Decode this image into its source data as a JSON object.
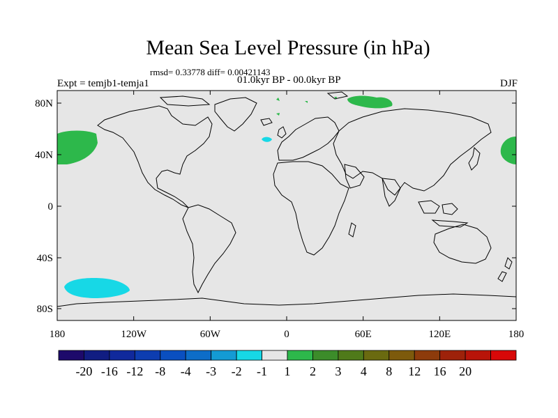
{
  "title": "Mean Sea Level Pressure (in hPa)",
  "subtitle": "rmsd= 0.33778 diff= 0.00421143",
  "left_label": "Expt = temjb1-temja1",
  "center_label": "01.0kyr BP - 00.0kyr BP",
  "right_label": "DJF",
  "colors": {
    "land_ocean_fill": "#e6e6e6",
    "green": "#2db84b",
    "cyan": "#17d8e6",
    "coast": "#000000"
  },
  "map": {
    "lat_ticks": [
      "80N",
      "40N",
      "0",
      "40S",
      "80S"
    ],
    "lon_ticks": [
      "180",
      "120W",
      "60W",
      "0",
      "60E",
      "120E",
      "180"
    ]
  },
  "colorbar": {
    "colors": [
      "#1d0a6b",
      "#111d82",
      "#10299c",
      "#0d3db0",
      "#0a4fc0",
      "#0d6dc8",
      "#149bd4",
      "#17d8e6",
      "#e6e6e6",
      "#2db84b",
      "#3c8c2a",
      "#4f7a1a",
      "#6a6a10",
      "#7d5a0c",
      "#8d3b0b",
      "#9e220a",
      "#b81409",
      "#d80808"
    ],
    "labels": [
      "-20",
      "-16",
      "-12",
      "-8",
      "-4",
      "-3",
      "-2",
      "-1",
      "1",
      "2",
      "3",
      "4",
      "8",
      "12",
      "16",
      "20"
    ]
  }
}
